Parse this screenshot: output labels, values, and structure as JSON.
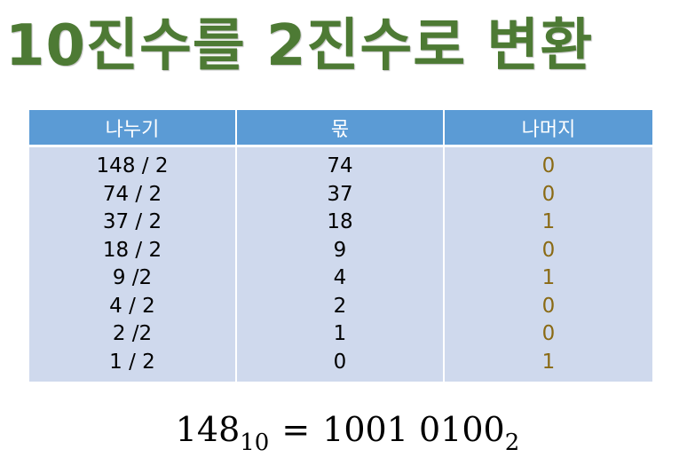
{
  "title": "10진수를 2진수로 변환",
  "table": {
    "headers": [
      "나누기",
      "몫",
      "나머지"
    ],
    "rows": [
      {
        "division": "148 / 2",
        "quotient": "74",
        "remainder": "0"
      },
      {
        "division": "74 / 2",
        "quotient": "37",
        "remainder": "0"
      },
      {
        "division": "37 / 2",
        "quotient": "18",
        "remainder": "1"
      },
      {
        "division": "18 / 2",
        "quotient": "9",
        "remainder": "0"
      },
      {
        "division": "9 /2",
        "quotient": "4",
        "remainder": "1"
      },
      {
        "division": "4 / 2",
        "quotient": "2",
        "remainder": "0"
      },
      {
        "division": "2 /2",
        "quotient": "1",
        "remainder": "0"
      },
      {
        "division": "1 / 2",
        "quotient": "0",
        "remainder": "1"
      }
    ]
  },
  "formula": {
    "left_value": "148",
    "left_base": "10",
    "equals": "=",
    "right_value": "1001 0100",
    "right_base": "2"
  },
  "colors": {
    "title": "#4d7a34",
    "header_bg": "#5b9bd5",
    "body_bg": "#cfd9ed",
    "remainder_text": "#8a6a14"
  }
}
